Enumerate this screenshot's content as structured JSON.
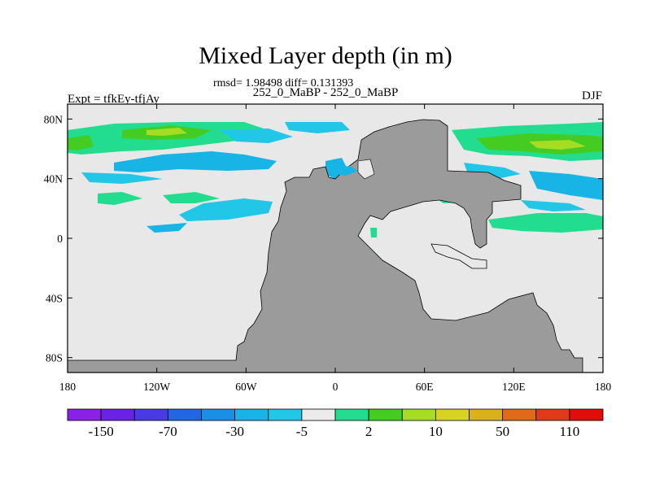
{
  "title": "Mixed Layer depth (in m)",
  "stats_line": "rmsd= 1.98498  diff= 0.131393",
  "subtitle": "252_0_MaBP - 252_0_MaBP",
  "left_label": "Expt = tfkEy-tfjAy",
  "right_label": "DJF",
  "chart_data": {
    "type": "heatmap",
    "projection": "cylindrical-equidistant",
    "variable": "Mixed layer depth difference",
    "units": "m",
    "x_ticks": [
      "180",
      "120W",
      "60W",
      "0",
      "60E",
      "120E",
      "180"
    ],
    "x_tick_values": [
      -180,
      -120,
      -60,
      0,
      60,
      120,
      180
    ],
    "y_ticks": [
      "80N",
      "40N",
      "0",
      "40S",
      "80S"
    ],
    "y_tick_values": [
      80,
      40,
      0,
      -40,
      -80
    ],
    "xlim": [
      -180,
      180
    ],
    "ylim": [
      -90,
      90
    ],
    "colorbar": {
      "labels": [
        "-150",
        "-70",
        "-30",
        "-5",
        "2",
        "10",
        "50",
        "110"
      ],
      "colors": [
        "#8a22e6",
        "#6a22e6",
        "#4a3ae6",
        "#2266e6",
        "#1a8fe6",
        "#18b4e6",
        "#22c6e6",
        "#ebebeb",
        "#22dd90",
        "#44cc22",
        "#a6dc22",
        "#d8d222",
        "#d9b21a",
        "#e06a1a",
        "#e03a1a",
        "#e20c0c"
      ]
    },
    "colors": {
      "land": "#9b9b9b",
      "ocean_background": "#e8e8e8",
      "near_zero_band": "#ebebeb"
    }
  }
}
